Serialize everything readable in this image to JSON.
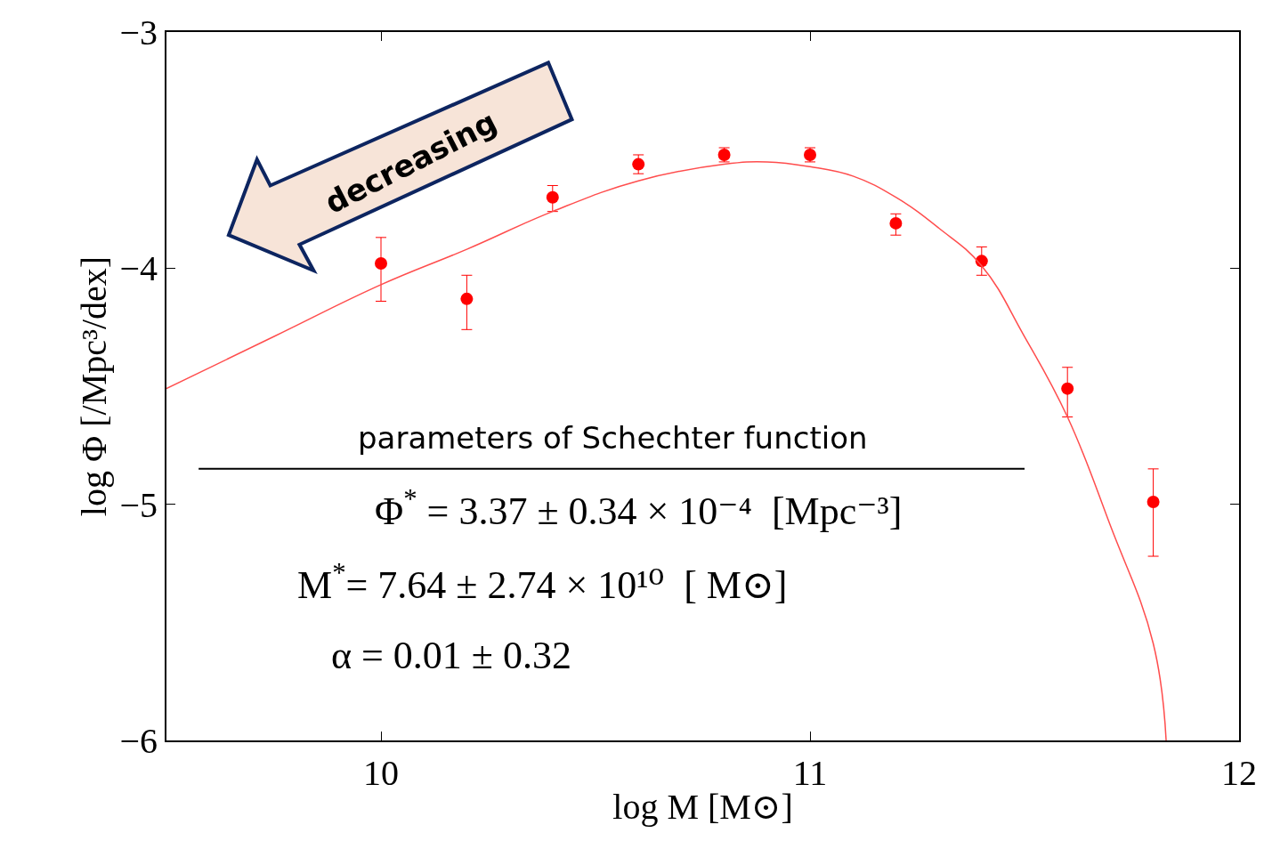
{
  "chart_data": {
    "type": "scatter",
    "xlabel": "log M [M⊙]",
    "ylabel": "log Φ [/Mpc³/dex]",
    "xlim": [
      9.5,
      12
    ],
    "xticks": [
      10,
      11,
      12
    ],
    "ylim": [
      -6,
      -3
    ],
    "yticks": [
      {
        "value": -6,
        "label": "−6"
      },
      {
        "value": -5,
        "label": "−5"
      },
      {
        "value": -4,
        "label": "−4"
      },
      {
        "value": -3,
        "label": "−3"
      }
    ],
    "grid": false,
    "series": [
      {
        "marker": "circle",
        "color": "#ff0000",
        "x": [
          10,
          10.2,
          10.4,
          10.6,
          10.8,
          11,
          11.2,
          11.4,
          11.6,
          11.8
        ],
        "values": [
          -3.98,
          -4.13,
          -3.7,
          -3.56,
          -3.52,
          -3.52,
          -3.81,
          -3.97,
          -4.51,
          -4.99
        ],
        "errors": [
          [
            -4.14,
            -3.87
          ],
          [
            -4.26,
            -4.03
          ],
          [
            -3.76,
            -3.65
          ],
          [
            -3.6,
            -3.52
          ],
          [
            -3.55,
            -3.49
          ],
          [
            -3.55,
            -3.49
          ],
          [
            -3.86,
            -3.77
          ],
          [
            -4.03,
            -3.91
          ],
          [
            -4.63,
            -4.42
          ],
          [
            -5.22,
            -4.85
          ]
        ]
      },
      {
        "type": "line",
        "line_style": "solid",
        "color": "#ff4d4d",
        "x": [
          9.5,
          9.75,
          10,
          10.2,
          10.4,
          10.6,
          10.8,
          10.9,
          11,
          11.1,
          11.2,
          11.3,
          11.4,
          11.5,
          11.6,
          11.7,
          11.8,
          11.83
        ],
        "values": [
          -4.51,
          -4.29,
          -4.07,
          -3.92,
          -3.76,
          -3.63,
          -3.56,
          -3.55,
          -3.57,
          -3.61,
          -3.7,
          -3.83,
          -3.99,
          -4.29,
          -4.63,
          -5.09,
          -5.59,
          -6
        ]
      }
    ],
    "annotations": [
      "decreasing",
      "parameters of Schechter function",
      "Φ$^{*}$ = 3.37 ± 0.34 × 10⁻⁴  [Mpc⁻³]",
      "M$^{*}$= 7.64 ± 2.74 × 10¹⁰  [ M⊙]",
      "α = 0.01 ± 0.32"
    ]
  }
}
